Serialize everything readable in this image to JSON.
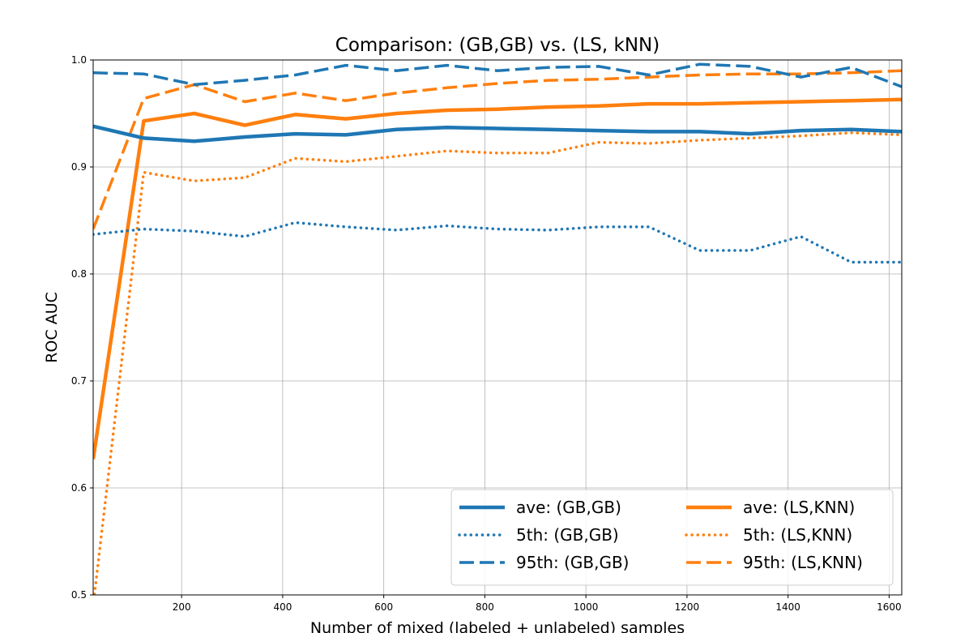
{
  "chart_data": {
    "type": "line",
    "title": "Comparison: (GB,GB) vs. (LS, kNN)",
    "xlabel": "Number of mixed (labeled + unlabeled) samples",
    "ylabel": "ROC AUC",
    "xlim": [
      25,
      1625
    ],
    "ylim": [
      0.5,
      1.0
    ],
    "xticks": [
      "200",
      "400",
      "600",
      "800",
      "1000",
      "1200",
      "1400",
      "1600"
    ],
    "yticks": [
      "0.5",
      "0.6",
      "0.7",
      "0.8",
      "0.9",
      "1.0"
    ],
    "grid": true,
    "legend_position": "lower-right",
    "x": [
      25,
      125,
      225,
      325,
      425,
      525,
      625,
      725,
      825,
      925,
      1025,
      1125,
      1225,
      1325,
      1425,
      1525,
      1625
    ],
    "series": [
      {
        "name": "ave: (GB,GB)",
        "color": "#1f77b4",
        "style": "solid",
        "values": [
          0.938,
          0.927,
          0.924,
          0.928,
          0.931,
          0.93,
          0.935,
          0.937,
          0.936,
          0.935,
          0.934,
          0.933,
          0.933,
          0.931,
          0.934,
          0.935,
          0.933
        ]
      },
      {
        "name": "5th: (GB,GB)",
        "color": "#1f77b4",
        "style": "dotted",
        "values": [
          0.837,
          0.842,
          0.84,
          0.835,
          0.848,
          0.844,
          0.841,
          0.845,
          0.842,
          0.841,
          0.844,
          0.844,
          0.822,
          0.822,
          0.835,
          0.811,
          0.811
        ]
      },
      {
        "name": "95th: (GB,GB)",
        "color": "#1f77b4",
        "style": "dashed",
        "values": [
          0.988,
          0.987,
          0.977,
          0.981,
          0.986,
          0.995,
          0.99,
          0.995,
          0.99,
          0.993,
          0.994,
          0.986,
          0.996,
          0.994,
          0.984,
          0.993,
          0.975
        ]
      },
      {
        "name": "ave: (LS,KNN)",
        "color": "#ff7f0e",
        "style": "solid",
        "values": [
          0.627,
          0.943,
          0.95,
          0.939,
          0.949,
          0.945,
          0.95,
          0.953,
          0.954,
          0.956,
          0.957,
          0.959,
          0.959,
          0.96,
          0.961,
          0.962,
          0.963
        ]
      },
      {
        "name": "5th: (LS,KNN)",
        "color": "#ff7f0e",
        "style": "dotted",
        "values": [
          0.49,
          0.895,
          0.887,
          0.89,
          0.908,
          0.905,
          0.91,
          0.915,
          0.913,
          0.913,
          0.923,
          0.922,
          0.925,
          0.927,
          0.929,
          0.932,
          0.93
        ]
      },
      {
        "name": "95th: (LS,KNN)",
        "color": "#ff7f0e",
        "style": "dashed",
        "values": [
          0.842,
          0.964,
          0.977,
          0.961,
          0.969,
          0.962,
          0.969,
          0.974,
          0.978,
          0.981,
          0.982,
          0.984,
          0.986,
          0.987,
          0.987,
          0.988,
          0.99
        ]
      }
    ]
  }
}
